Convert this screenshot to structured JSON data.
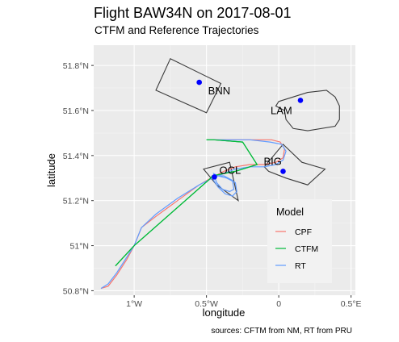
{
  "title": "Flight BAW34N on 2017-08-01",
  "subtitle": "CTFM and Reference Trajectories",
  "caption": "sources: CFTM from NM, RT from PRU",
  "colors": {
    "panel": "#ebebeb",
    "grid_major": "#ffffff",
    "grid_minor": "#f5f5f5",
    "sector": "#3a3a3a",
    "point": "#0000ff",
    "CPF": "#f8766d",
    "CTFM": "#00ba38",
    "RT": "#619cff"
  },
  "chart_data": {
    "type": "line",
    "title": "Flight BAW34N on 2017-08-01",
    "subtitle": "CTFM and Reference Trajectories",
    "xlabel": "longitude",
    "ylabel": "latitude",
    "xlim": [
      -1.28,
      0.53
    ],
    "ylim": [
      50.78,
      51.89
    ],
    "x_ticks": [
      -1.0,
      -0.5,
      0.0,
      0.5
    ],
    "x_tick_labels": [
      "1°W",
      "0.5°W",
      "0",
      "0.5°E"
    ],
    "y_ticks": [
      50.8,
      51.0,
      51.2,
      51.4,
      51.6,
      51.8
    ],
    "y_tick_labels": [
      "50.8°N",
      "51°N",
      "51.2°N",
      "51.4°N",
      "51.6°N",
      "51.8°N"
    ],
    "grid": true,
    "legend": {
      "title": "Model",
      "position": "right-bottom",
      "entries": [
        "CPF",
        "CTFM",
        "RT"
      ]
    },
    "holding_stacks": [
      {
        "name": "BNN",
        "point": [
          -0.55,
          51.725
        ],
        "polygon": [
          [
            -0.75,
            51.83
          ],
          [
            -0.85,
            51.69
          ],
          [
            -0.5,
            51.59
          ],
          [
            -0.4,
            51.72
          ]
        ]
      },
      {
        "name": "LAM",
        "point": [
          0.15,
          51.645
        ],
        "polygon": [
          [
            0.0,
            51.64
          ],
          [
            0.2,
            51.68
          ],
          [
            0.33,
            51.69
          ],
          [
            0.39,
            51.66
          ],
          [
            0.42,
            51.62
          ],
          [
            0.42,
            51.56
          ],
          [
            0.39,
            51.53
          ],
          [
            0.2,
            51.51
          ],
          [
            0.1,
            51.52
          ],
          [
            0.05,
            51.56
          ],
          [
            0.04,
            51.6
          ],
          [
            -0.02,
            51.62
          ],
          [
            0.0,
            51.64
          ]
        ]
      },
      {
        "name": "BIG",
        "point": [
          0.03,
          51.33
        ],
        "polygon": [
          [
            -0.1,
            51.35
          ],
          [
            0.03,
            51.45
          ],
          [
            0.16,
            51.37
          ],
          [
            0.32,
            51.34
          ],
          [
            0.2,
            51.27
          ],
          [
            0.05,
            51.3
          ],
          [
            -0.07,
            51.33
          ]
        ]
      },
      {
        "name": "OCL",
        "point": [
          -0.445,
          51.305
        ],
        "polygon": [
          [
            -0.52,
            51.34
          ],
          [
            -0.34,
            51.37
          ],
          [
            -0.28,
            51.2
          ],
          [
            -0.43,
            51.27
          ]
        ]
      }
    ],
    "series": [
      {
        "name": "CPF",
        "points": [
          [
            -1.23,
            50.81
          ],
          [
            -1.18,
            50.82
          ],
          [
            -1.12,
            50.87
          ],
          [
            -1.05,
            50.94
          ],
          [
            -1.0,
            51.0
          ],
          [
            -0.95,
            51.08
          ],
          [
            -0.85,
            51.13
          ],
          [
            -0.7,
            51.2
          ],
          [
            -0.55,
            51.27
          ],
          [
            -0.47,
            51.3
          ],
          [
            -0.38,
            51.33
          ],
          [
            -0.3,
            51.35
          ],
          [
            -0.2,
            51.36
          ],
          [
            -0.1,
            51.36
          ],
          [
            -0.02,
            51.37
          ],
          [
            0.03,
            51.39
          ],
          [
            0.04,
            51.43
          ],
          [
            0.01,
            51.46
          ],
          [
            -0.05,
            51.47
          ],
          [
            -0.2,
            51.47
          ],
          [
            -0.35,
            51.47
          ],
          [
            -0.45,
            51.47
          ]
        ]
      },
      {
        "name": "CTFM",
        "points": [
          [
            -1.13,
            50.91
          ],
          [
            -1.0,
            51.0
          ],
          [
            -0.47,
            51.3
          ],
          [
            -0.46,
            51.31
          ],
          [
            -0.3,
            51.33
          ],
          [
            -0.15,
            51.36
          ],
          [
            -0.25,
            51.46
          ],
          [
            -0.45,
            51.47
          ],
          [
            -0.5,
            51.47
          ]
        ]
      },
      {
        "name": "RT",
        "points": [
          [
            -1.23,
            50.81
          ],
          [
            -1.18,
            50.83
          ],
          [
            -1.12,
            50.88
          ],
          [
            -1.05,
            50.95
          ],
          [
            -1.0,
            51.0
          ],
          [
            -0.95,
            51.08
          ],
          [
            -0.85,
            51.14
          ],
          [
            -0.7,
            51.21
          ],
          [
            -0.55,
            51.27
          ],
          [
            -0.46,
            51.3
          ],
          [
            -0.38,
            51.32
          ],
          [
            -0.3,
            51.34
          ],
          [
            -0.2,
            51.35
          ],
          [
            -0.1,
            51.35
          ],
          [
            -0.02,
            51.36
          ],
          [
            0.03,
            51.38
          ],
          [
            0.05,
            51.42
          ],
          [
            0.02,
            51.45
          ],
          [
            -0.06,
            51.46
          ],
          [
            -0.2,
            51.47
          ],
          [
            -0.33,
            51.47
          ],
          [
            -0.45,
            51.47
          ]
        ]
      }
    ],
    "holding_pattern": {
      "name": "OCL",
      "points": [
        [
          -0.46,
          51.3
        ],
        [
          -0.42,
          51.26
        ],
        [
          -0.37,
          51.23
        ],
        [
          -0.32,
          51.22
        ],
        [
          -0.29,
          51.24
        ],
        [
          -0.3,
          51.28
        ],
        [
          -0.36,
          51.3
        ],
        [
          -0.42,
          51.31
        ],
        [
          -0.45,
          51.32
        ],
        [
          -0.43,
          51.28
        ],
        [
          -0.39,
          51.25
        ],
        [
          -0.34,
          51.24
        ],
        [
          -0.31,
          51.25
        ],
        [
          -0.32,
          51.29
        ],
        [
          -0.38,
          51.31
        ],
        [
          -0.44,
          51.31
        ]
      ]
    }
  }
}
